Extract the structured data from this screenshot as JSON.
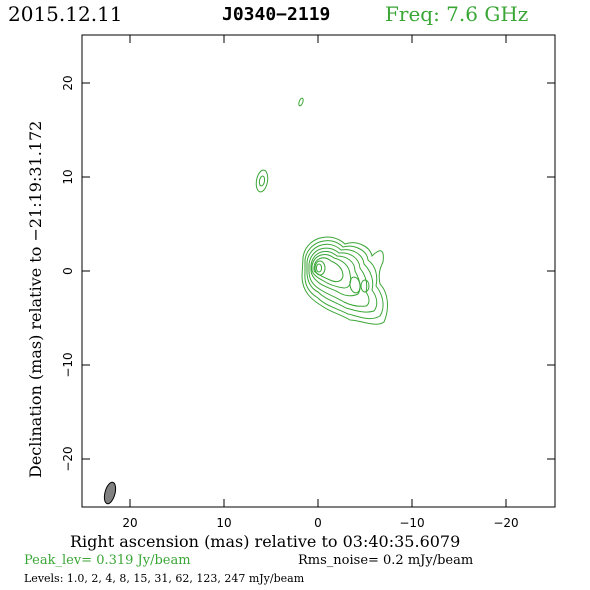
{
  "header": {
    "date": "2015.12.11",
    "source": "J0340−2119",
    "freq": "Freq: 7.6 GHz"
  },
  "axes": {
    "xlabel": "Right ascension (mas) relative to 03:40:35.6079",
    "ylabel": "Declination (mas) relative to −21:19:31.172",
    "x_ticks": [
      "20",
      "10",
      "0",
      "−10",
      "−20"
    ],
    "y_ticks": [
      "20",
      "10",
      "0",
      "−10",
      "−20"
    ]
  },
  "footer": {
    "peak": "Peak_lev=  0.319 Jy/beam",
    "rms": "Rms_noise=   0.2 mJy/beam",
    "levels": "Levels: 1.0,    2,    4,    8,   15,   31,   62, 123, 247 mJy/beam"
  },
  "colors": {
    "contour": "#3aa636",
    "beam": "#808080"
  }
}
